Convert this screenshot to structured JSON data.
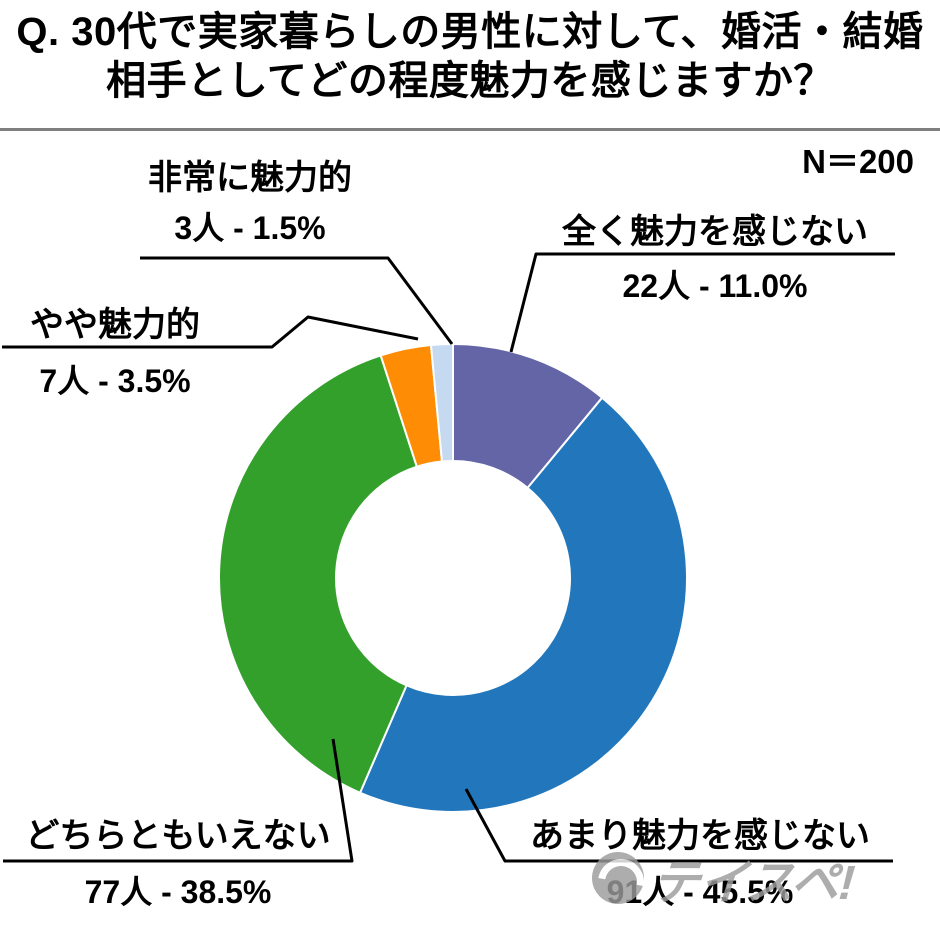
{
  "title": {
    "line1": "Q. 30代で実家暮らしの男性に対して、婚活・結婚",
    "line2": "相手としてどの程度魅力を感じますか？"
  },
  "sample_size": "N＝200",
  "watermark": "テイスペ!",
  "chart_data": {
    "type": "pie",
    "donut": true,
    "inner_radius_ratio": 0.5,
    "start_angle": "top",
    "direction": "clockwise",
    "title": "Q. 30代で実家暮らしの男性に対して、婚活・結婚相手としてどの程度魅力を感じますか？",
    "sample_size_label": "N＝200",
    "total": 200,
    "unit": "人",
    "legend": "callout-labels",
    "segments": [
      {
        "label": "全く魅力を感じない",
        "count": 22,
        "percent": 11.0,
        "count_label": "22人 - 11.0%",
        "color": "#6365A7"
      },
      {
        "label": "あまり魅力を感じない",
        "count": 91,
        "percent": 45.5,
        "count_label": "91人 - 45.5%",
        "color": "#2277BC"
      },
      {
        "label": "どちらともいえない",
        "count": 77,
        "percent": 38.5,
        "count_label": "77人 - 38.5%",
        "color": "#33A02C"
      },
      {
        "label": "やや魅力的",
        "count": 7,
        "percent": 3.5,
        "count_label": "7人 - 3.5%",
        "color": "#FF8C05"
      },
      {
        "label": "非常に魅力的",
        "count": 3,
        "percent": 1.5,
        "count_label": "3人 - 1.5%",
        "color": "#C5D9F1"
      }
    ]
  }
}
